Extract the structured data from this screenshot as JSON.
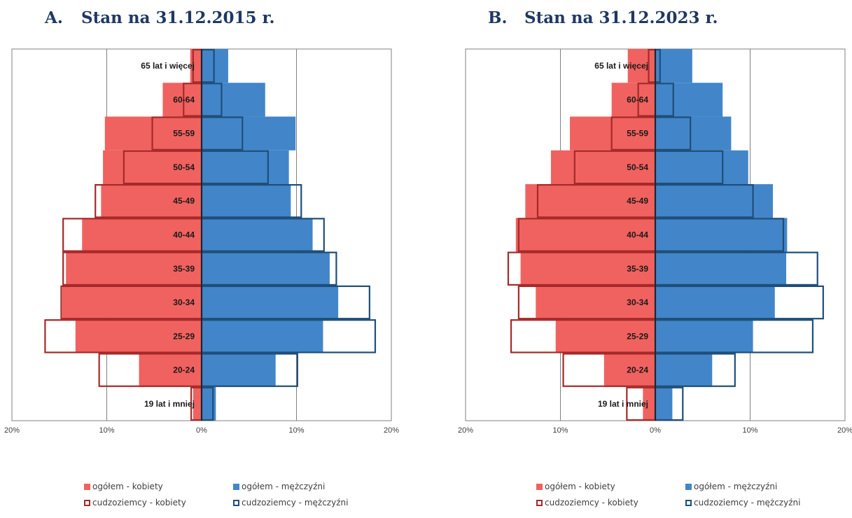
{
  "panels": [
    {
      "letter": "A.",
      "title": "Stan na 31.12.2015 r."
    },
    {
      "letter": "B.",
      "title": "Stan na 31.12.2023 r."
    }
  ],
  "legend": {
    "total_women": "ogółem - kobiety",
    "total_men": "ogółem - mężczyźni",
    "foreign_women": "cudzoziemcy - kobiety",
    "foreign_men": "cudzoziemcy - mężczyźni"
  },
  "colors": {
    "total_women": "#f0625f",
    "total_men": "#4286c9",
    "foreign_women": "#a52a2a",
    "foreign_men": "#1f4e79",
    "title": "#1f3864",
    "grid": "#808080"
  },
  "chart_data": [
    {
      "type": "bar",
      "subtype": "population-pyramid",
      "title": "Stan na 31.12.2015 r.",
      "categories": [
        "65 lat i więcej",
        "60-64",
        "55-59",
        "50-54",
        "45-49",
        "40-44",
        "35-39",
        "30-34",
        "25-29",
        "20-24",
        "19 lat i mniej"
      ],
      "x_ticks": [
        "20%",
        "10%",
        "0%",
        "10%",
        "20%"
      ],
      "xlim": [
        -20,
        20
      ],
      "grid": true,
      "legend_position": "bottom",
      "series": [
        {
          "name": "ogółem - kobiety",
          "side": "left",
          "style": "filled",
          "values": [
            1.2,
            4.1,
            10.2,
            10.4,
            10.6,
            12.6,
            14.3,
            14.7,
            13.3,
            6.6,
            0.9
          ]
        },
        {
          "name": "ogółem - mężczyźni",
          "side": "right",
          "style": "filled",
          "values": [
            2.8,
            6.7,
            9.9,
            9.2,
            9.4,
            11.7,
            13.5,
            14.4,
            12.8,
            7.8,
            1.5
          ]
        },
        {
          "name": "cudzoziemcy - kobiety",
          "side": "left",
          "style": "outline",
          "values": [
            0.9,
            1.9,
            5.2,
            8.2,
            11.2,
            14.6,
            14.6,
            14.8,
            16.5,
            10.8,
            1.1
          ]
        },
        {
          "name": "cudzoziemcy - mężczyźni",
          "side": "right",
          "style": "outline",
          "values": [
            1.3,
            2.1,
            4.3,
            7.0,
            10.5,
            12.9,
            14.2,
            17.7,
            18.3,
            10.1,
            1.2
          ]
        }
      ]
    },
    {
      "type": "bar",
      "subtype": "population-pyramid",
      "title": "Stan na 31.12.2023 r.",
      "categories": [
        "65 lat i więcej",
        "60-64",
        "55-59",
        "50-54",
        "45-49",
        "40-44",
        "35-39",
        "30-34",
        "25-29",
        "20-24",
        "19 lat i mniej"
      ],
      "x_ticks": [
        "20%",
        "10%",
        "0%",
        "10%",
        "20%"
      ],
      "xlim": [
        -20,
        20
      ],
      "grid": true,
      "legend_position": "bottom",
      "series": [
        {
          "name": "ogółem - kobiety",
          "side": "left",
          "style": "filled",
          "values": [
            2.9,
            4.6,
            9.0,
            11.0,
            13.7,
            14.7,
            14.2,
            12.6,
            10.5,
            5.4,
            1.3
          ]
        },
        {
          "name": "ogółem - mężczyźni",
          "side": "right",
          "style": "filled",
          "values": [
            3.9,
            7.1,
            8.0,
            9.8,
            12.4,
            13.9,
            13.8,
            12.6,
            10.3,
            6.0,
            1.8
          ]
        },
        {
          "name": "cudzoziemcy - kobiety",
          "side": "left",
          "style": "outline",
          "values": [
            0.7,
            1.8,
            4.6,
            8.5,
            12.4,
            14.4,
            15.5,
            14.4,
            15.2,
            9.7,
            3.0
          ]
        },
        {
          "name": "cudzoziemcy - mężczyźni",
          "side": "right",
          "style": "outline",
          "values": [
            0.5,
            1.9,
            3.7,
            7.1,
            10.3,
            13.5,
            17.1,
            17.7,
            16.6,
            8.4,
            2.9
          ]
        }
      ]
    }
  ]
}
